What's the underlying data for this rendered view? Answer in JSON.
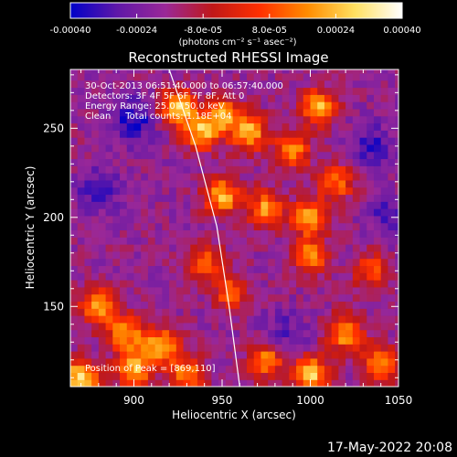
{
  "chart_data": {
    "type": "heatmap",
    "title": "Reconstructed RHESSI Image",
    "xlabel": "Heliocentric X (arcsec)",
    "ylabel": "Heliocentric Y (arcsec)",
    "xlim": [
      864,
      1050
    ],
    "ylim": [
      105,
      283
    ],
    "x_ticks": [
      {
        "value": 900,
        "label": "900"
      },
      {
        "value": 950,
        "label": "950"
      },
      {
        "value": 1000,
        "label": "1000"
      },
      {
        "value": 1050,
        "label": "1050"
      }
    ],
    "y_ticks": [
      {
        "value": 150,
        "label": "150"
      },
      {
        "value": 200,
        "label": "200"
      },
      {
        "value": 250,
        "label": "250"
      }
    ],
    "info_lines": [
      "30-Oct-2013 06:51:40.000 to 06:57:40.000",
      "Detectors: 3F 4F 5F 6F 7F 8F, Att 0",
      "Energy Range: 25.0 - 50.0 keV",
      "Clean     Total counts: 1.18E+04"
    ],
    "peak_text": "Position of Peak = [869,110]",
    "peak": [
      869,
      110
    ],
    "limb_curve": [
      [
        920,
        283
      ],
      [
        935,
        240
      ],
      [
        947,
        195
      ],
      [
        954,
        150
      ],
      [
        960,
        105
      ]
    ],
    "colorbar": {
      "range": [
        -0.0004,
        0.0004
      ],
      "tick_labels": [
        {
          "value": -0.0004,
          "label": "-0.00040"
        },
        {
          "value": -0.00024,
          "label": "-0.00024"
        },
        {
          "value": -8e-05,
          "label": "-8.0e-05"
        },
        {
          "value": 8e-05,
          "label": "8.0e-05"
        },
        {
          "value": 0.00024,
          "label": "0.00024"
        },
        {
          "value": 0.0004,
          "label": "0.00040"
        }
      ],
      "units": "(photons cm⁻² s⁻¹ asec⁻²)",
      "colors": [
        "#0000c8",
        "#6018a8",
        "#9a2898",
        "#c01818",
        "#ff3000",
        "#ff8c00",
        "#ffe060",
        "#ffffff"
      ]
    },
    "hotspots": [
      {
        "x": 925,
        "y": 262,
        "amp": 0.9
      },
      {
        "x": 938,
        "y": 248,
        "amp": 0.8
      },
      {
        "x": 950,
        "y": 258,
        "amp": 0.7
      },
      {
        "x": 965,
        "y": 248,
        "amp": 0.85
      },
      {
        "x": 990,
        "y": 238,
        "amp": 0.7
      },
      {
        "x": 1005,
        "y": 262,
        "amp": 0.8
      },
      {
        "x": 1015,
        "y": 220,
        "amp": 0.6
      },
      {
        "x": 950,
        "y": 212,
        "amp": 0.85
      },
      {
        "x": 975,
        "y": 205,
        "amp": 0.75
      },
      {
        "x": 1000,
        "y": 200,
        "amp": 0.8
      },
      {
        "x": 1000,
        "y": 178,
        "amp": 0.7
      },
      {
        "x": 940,
        "y": 175,
        "amp": 0.6
      },
      {
        "x": 955,
        "y": 158,
        "amp": 0.55
      },
      {
        "x": 880,
        "y": 150,
        "amp": 0.8
      },
      {
        "x": 895,
        "y": 135,
        "amp": 0.75
      },
      {
        "x": 915,
        "y": 128,
        "amp": 0.85
      },
      {
        "x": 900,
        "y": 115,
        "amp": 0.8
      },
      {
        "x": 870,
        "y": 110,
        "amp": 1.0
      },
      {
        "x": 930,
        "y": 112,
        "amp": 0.7
      },
      {
        "x": 975,
        "y": 120,
        "amp": 0.7
      },
      {
        "x": 1000,
        "y": 112,
        "amp": 0.9
      },
      {
        "x": 1020,
        "y": 135,
        "amp": 0.75
      },
      {
        "x": 1040,
        "y": 118,
        "amp": 0.7
      },
      {
        "x": 1035,
        "y": 170,
        "amp": 0.55
      }
    ],
    "coldspots": [
      {
        "x": 900,
        "y": 255,
        "amp": 0.7
      },
      {
        "x": 880,
        "y": 215,
        "amp": 0.5
      },
      {
        "x": 1035,
        "y": 240,
        "amp": 0.55
      },
      {
        "x": 1045,
        "y": 200,
        "amp": 0.5
      },
      {
        "x": 985,
        "y": 135,
        "amp": 0.4
      }
    ]
  },
  "timestamp": "17-May-2022 20:08"
}
